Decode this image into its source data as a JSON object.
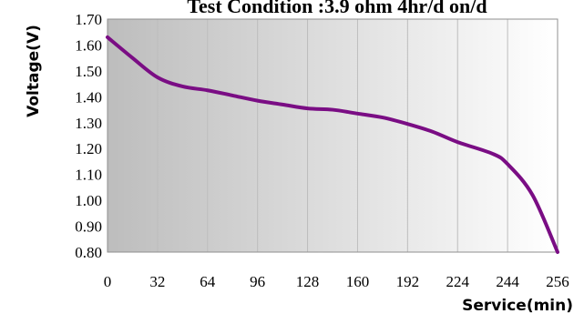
{
  "chart_data": {
    "type": "line",
    "title": "Test Condition :3.9 ohm  4hr/d on/d",
    "xlabel": "Service(min)",
    "ylabel": "Voltage(V)",
    "x_ticks": [
      "0",
      "32",
      "64",
      "96",
      "128",
      "160",
      "192",
      "224",
      "244",
      "256"
    ],
    "y_ticks": [
      "0.80",
      "0.90",
      "1.00",
      "1.10",
      "1.20",
      "1.30",
      "1.40",
      "1.50",
      "1.60",
      "1.70"
    ],
    "ylim": [
      0.8,
      1.7
    ],
    "grid": "vertical",
    "line_color": "#7a0d84",
    "series": [
      {
        "x": [
          0,
          16,
          32,
          48,
          64,
          80,
          96,
          112,
          128,
          144,
          160,
          176,
          192,
          208,
          224,
          238,
          244,
          250,
          256
        ],
        "y": [
          1.63,
          1.55,
          1.475,
          1.44,
          1.425,
          1.405,
          1.385,
          1.37,
          1.355,
          1.35,
          1.335,
          1.32,
          1.295,
          1.265,
          1.225,
          1.18,
          1.14,
          1.02,
          0.8
        ]
      }
    ]
  }
}
